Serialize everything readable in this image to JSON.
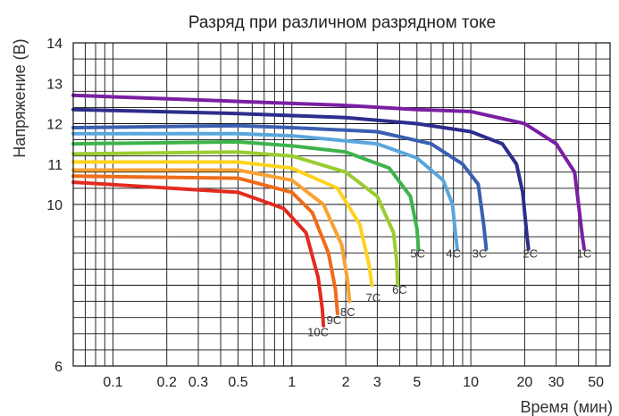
{
  "chart_data": {
    "type": "line",
    "title": "Разряд при различном разрядном токе",
    "xlabel": "Время (мин)",
    "ylabel": "Напряжение (В)",
    "x_scale": "log",
    "xlim": [
      0.06,
      60
    ],
    "ylim": [
      6,
      14
    ],
    "x_ticks": [
      0.1,
      0.2,
      0.3,
      0.5,
      1,
      2,
      3,
      5,
      10,
      20,
      30,
      50
    ],
    "x_tick_labels": [
      "0.1",
      "0.2",
      "0.3",
      "0.5",
      "1",
      "2",
      "3",
      "5",
      "10",
      "20",
      "30",
      "50"
    ],
    "y_tick_labels": [
      {
        "value": 14,
        "label": "14"
      },
      {
        "value": 13,
        "label": "13"
      },
      {
        "value": 12,
        "label": "12"
      },
      {
        "value": 11,
        "label": "11"
      },
      {
        "value": 10,
        "label": "10"
      },
      {
        "value": 6,
        "label": "6"
      }
    ],
    "grid": true,
    "legend": "none",
    "series": [
      {
        "name": "1C",
        "color": "#7a1fa2",
        "x": [
          0.06,
          0.5,
          2,
          5,
          10,
          20,
          30,
          38,
          40,
          42,
          43
        ],
        "y": [
          12.7,
          12.55,
          12.45,
          12.35,
          12.3,
          12.0,
          11.5,
          10.8,
          10.0,
          9.2,
          8.9
        ]
      },
      {
        "name": "2C",
        "color": "#2d2d8c",
        "x": [
          0.06,
          0.5,
          2,
          5,
          10,
          15,
          18,
          19.5,
          20.5,
          21
        ],
        "y": [
          12.35,
          12.25,
          12.15,
          12.0,
          11.8,
          11.5,
          11.0,
          10.3,
          9.3,
          8.9
        ]
      },
      {
        "name": "3C",
        "color": "#3a5fb0",
        "x": [
          0.06,
          0.5,
          1,
          3,
          6,
          9,
          11,
          11.8,
          12.2
        ],
        "y": [
          11.9,
          11.95,
          11.9,
          11.8,
          11.5,
          11.0,
          10.5,
          9.5,
          8.9
        ]
      },
      {
        "name": "4C",
        "color": "#5aa6dc",
        "x": [
          0.06,
          0.5,
          1,
          3,
          5,
          7,
          7.9,
          8.2,
          8.4
        ],
        "y": [
          11.75,
          11.75,
          11.7,
          11.5,
          11.15,
          10.6,
          10.0,
          9.3,
          8.9
        ]
      },
      {
        "name": "5C",
        "color": "#3cb44b",
        "x": [
          0.06,
          0.5,
          1,
          2,
          3.5,
          4.6,
          5.0,
          5.1
        ],
        "y": [
          11.5,
          11.55,
          11.45,
          11.3,
          10.9,
          10.2,
          9.4,
          8.9
        ]
      },
      {
        "name": "6C",
        "color": "#9acd32",
        "x": [
          0.06,
          0.5,
          1,
          2,
          3,
          3.7,
          3.85,
          3.9
        ],
        "y": [
          11.25,
          11.3,
          11.2,
          10.8,
          10.2,
          9.3,
          8.6,
          8.0
        ]
      },
      {
        "name": "7C",
        "color": "#ffd21e",
        "x": [
          0.06,
          0.5,
          1,
          1.8,
          2.4,
          2.7,
          2.8
        ],
        "y": [
          11.05,
          11.05,
          10.9,
          10.4,
          9.5,
          8.5,
          8.0
        ]
      },
      {
        "name": "8C",
        "color": "#f7a233",
        "x": [
          0.06,
          0.5,
          1,
          1.5,
          1.9,
          2.05,
          2.1
        ],
        "y": [
          10.85,
          10.85,
          10.6,
          10.0,
          9.0,
          8.1,
          7.6
        ]
      },
      {
        "name": "9C",
        "color": "#ef6c1a",
        "x": [
          0.06,
          0.5,
          1,
          1.3,
          1.6,
          1.75,
          1.8
        ],
        "y": [
          10.7,
          10.65,
          10.3,
          9.8,
          8.8,
          7.9,
          7.3
        ]
      },
      {
        "name": "10C",
        "color": "#e32b1f",
        "x": [
          0.06,
          0.5,
          0.9,
          1.2,
          1.4,
          1.48,
          1.5
        ],
        "y": [
          10.55,
          10.3,
          9.9,
          9.3,
          8.2,
          7.4,
          7.0
        ]
      }
    ],
    "curve_labels": [
      {
        "text": "1C",
        "x": 43,
        "y": 8.8
      },
      {
        "text": "2C",
        "x": 21.5,
        "y": 8.8
      },
      {
        "text": "3C",
        "x": 11.2,
        "y": 8.8
      },
      {
        "text": "4C",
        "x": 8.0,
        "y": 8.8
      },
      {
        "text": "5C",
        "x": 5.05,
        "y": 8.8
      },
      {
        "text": "6C",
        "x": 4.0,
        "y": 7.9
      },
      {
        "text": "7C",
        "x": 2.85,
        "y": 7.7
      },
      {
        "text": "8C",
        "x": 2.05,
        "y": 7.35
      },
      {
        "text": "9C",
        "x": 1.72,
        "y": 7.15
      },
      {
        "text": "10C",
        "x": 1.4,
        "y": 6.85
      }
    ]
  }
}
